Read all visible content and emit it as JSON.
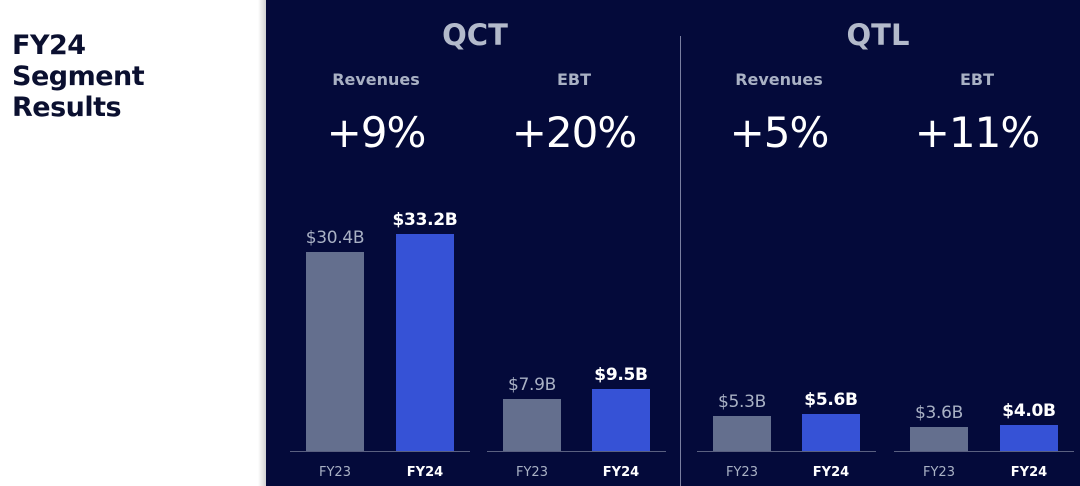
{
  "page": {
    "title_lines": [
      "FY24",
      "Segment",
      "Results"
    ]
  },
  "colors": {
    "background": "#040a3a",
    "fy23_bar": "#646f8e",
    "fy24_bar": "#3652d6",
    "label_muted": "#a9b1c4"
  },
  "chart_data": [
    {
      "type": "bar",
      "segment": "QCT",
      "metric": "Revenues",
      "change": "+9%",
      "categories": [
        "FY23",
        "FY24"
      ],
      "values": [
        30.4,
        33.2
      ],
      "value_labels": [
        "$30.4B",
        "$33.2B"
      ],
      "unit": "$B"
    },
    {
      "type": "bar",
      "segment": "QCT",
      "metric": "EBT",
      "change": "+20%",
      "categories": [
        "FY23",
        "FY24"
      ],
      "values": [
        7.9,
        9.5
      ],
      "value_labels": [
        "$7.9B",
        "$9.5B"
      ],
      "unit": "$B"
    },
    {
      "type": "bar",
      "segment": "QTL",
      "metric": "Revenues",
      "change": "+5%",
      "categories": [
        "FY23",
        "FY24"
      ],
      "values": [
        5.3,
        5.6
      ],
      "value_labels": [
        "$5.3B",
        "$5.6B"
      ],
      "unit": "$B"
    },
    {
      "type": "bar",
      "segment": "QTL",
      "metric": "EBT",
      "change": "+11%",
      "categories": [
        "FY23",
        "FY24"
      ],
      "values": [
        3.6,
        4.0
      ],
      "value_labels": [
        "$3.6B",
        "$4.0B"
      ],
      "unit": "$B"
    }
  ]
}
